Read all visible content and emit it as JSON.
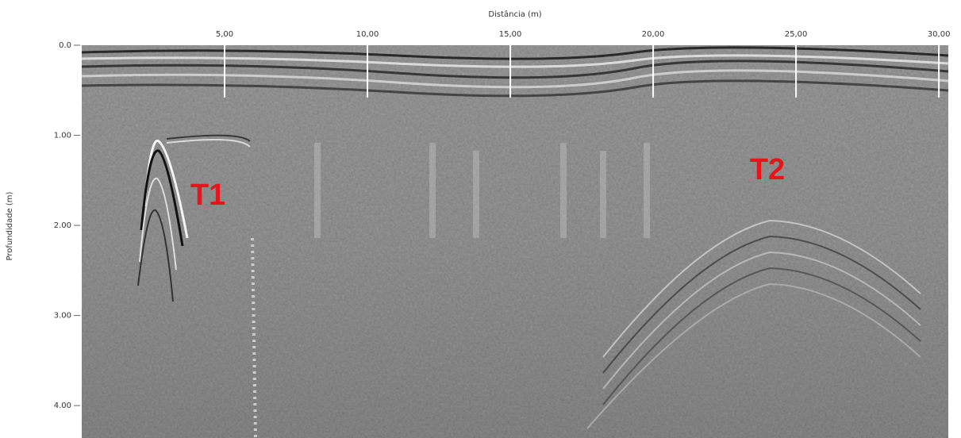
{
  "chart_data": {
    "type": "radargram",
    "x_label": "Distância (m)",
    "y_label": "Profundidade (m)",
    "xlim": [
      0,
      30.33
    ],
    "ylim": [
      0,
      4.36
    ],
    "y_axis_inverted": true,
    "x_axis_position": "top",
    "xticks": [
      {
        "value": 5,
        "label": "5,00"
      },
      {
        "value": 10,
        "label": "10,00"
      },
      {
        "value": 15,
        "label": "15,00"
      },
      {
        "value": 20,
        "label": "20,00"
      },
      {
        "value": 25,
        "label": "25,00"
      },
      {
        "value": 30,
        "label": "30,00"
      }
    ],
    "yticks": [
      {
        "value": 0,
        "label": "0.0"
      },
      {
        "value": 1,
        "label": "1.00"
      },
      {
        "value": 2,
        "label": "2.00"
      },
      {
        "value": 3,
        "label": "3.00"
      },
      {
        "value": 4,
        "label": "4.00"
      }
    ],
    "annotations": [
      "T1",
      "T2"
    ],
    "annotation_color": "#e8141b"
  }
}
